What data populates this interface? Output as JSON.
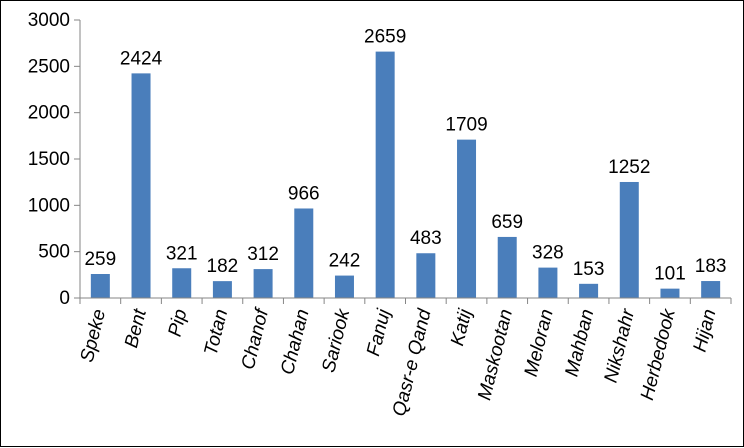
{
  "chart_data": {
    "type": "bar",
    "categories": [
      "Speke",
      "Bent",
      "Pip",
      "Totan",
      "Chanof",
      "Chahan",
      "Sariook",
      "Fanuj",
      "Qasr-e Qand",
      "Katij",
      "Maskootan",
      "Meloran",
      "Mahban",
      "Nikshahr",
      "Herbedook",
      "Hijan"
    ],
    "values": [
      259,
      2424,
      321,
      182,
      312,
      966,
      242,
      2659,
      483,
      1709,
      659,
      328,
      153,
      1252,
      101,
      183
    ],
    "data_labels": [
      "259",
      "2424",
      "321",
      "182",
      "312",
      "966",
      "242",
      "2659",
      "483",
      "1709",
      "659",
      "328",
      "153",
      "1252",
      "101",
      "183"
    ],
    "ylim": [
      0,
      3000
    ],
    "yticks": [
      0,
      500,
      1000,
      1500,
      2000,
      2500,
      3000
    ],
    "ytick_labels": [
      "0",
      "500",
      "1000",
      "1500",
      "2000",
      "2500",
      "3000"
    ],
    "grid": false,
    "legend": "none",
    "bar_color": "#4a7ebb",
    "axis_color": "#868686",
    "title": "",
    "xlabel": "",
    "ylabel": ""
  }
}
